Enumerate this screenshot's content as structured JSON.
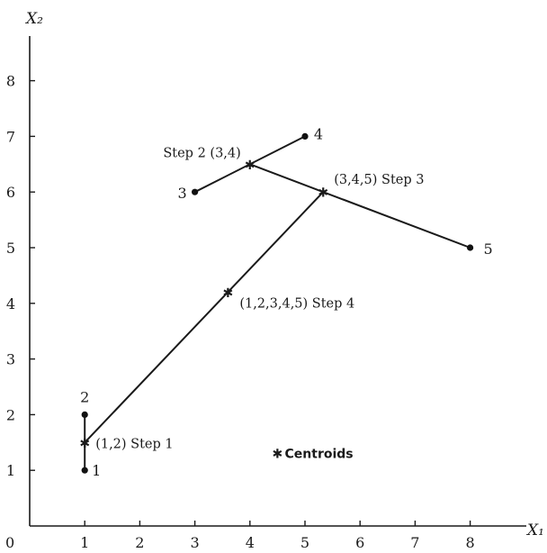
{
  "chart_data": {
    "type": "scatter",
    "xlabel": "X₁",
    "ylabel": "X₂",
    "xlim": [
      0,
      8.5
    ],
    "ylim": [
      0,
      9
    ],
    "x_ticks": [
      "1",
      "2",
      "3",
      "4",
      "5",
      "6",
      "7",
      "8"
    ],
    "y_ticks": [
      "1",
      "2",
      "3",
      "4",
      "5",
      "6",
      "7",
      "8"
    ],
    "origin_label": "0",
    "points": [
      {
        "label": "1",
        "x": 1,
        "y": 1
      },
      {
        "label": "2",
        "x": 1,
        "y": 2
      },
      {
        "label": "3",
        "x": 3,
        "y": 6
      },
      {
        "label": "4",
        "x": 5,
        "y": 7
      },
      {
        "label": "5",
        "x": 8,
        "y": 5
      }
    ],
    "centroids": [
      {
        "label": "(1,2) Step 1",
        "x": 1,
        "y": 1.5
      },
      {
        "label": "Step 2 (3,4)",
        "x": 4,
        "y": 6.5
      },
      {
        "label": "(3,4,5) Step 3",
        "x": 5.33,
        "y": 6
      },
      {
        "label": "(1,2,3,4,5) Step 4",
        "x": 3.6,
        "y": 4.2
      }
    ],
    "links": [
      {
        "from": [
          1,
          1
        ],
        "to": [
          1,
          2
        ]
      },
      {
        "from": [
          3,
          6
        ],
        "to": [
          5,
          7
        ]
      },
      {
        "from": [
          4,
          6.5
        ],
        "to": [
          8,
          5
        ]
      },
      {
        "from": [
          1,
          1.5
        ],
        "to": [
          5.33,
          6
        ]
      }
    ],
    "legend": {
      "symbol": "✱",
      "label": "Centroids",
      "x": 4.6,
      "y": 1.3
    }
  }
}
